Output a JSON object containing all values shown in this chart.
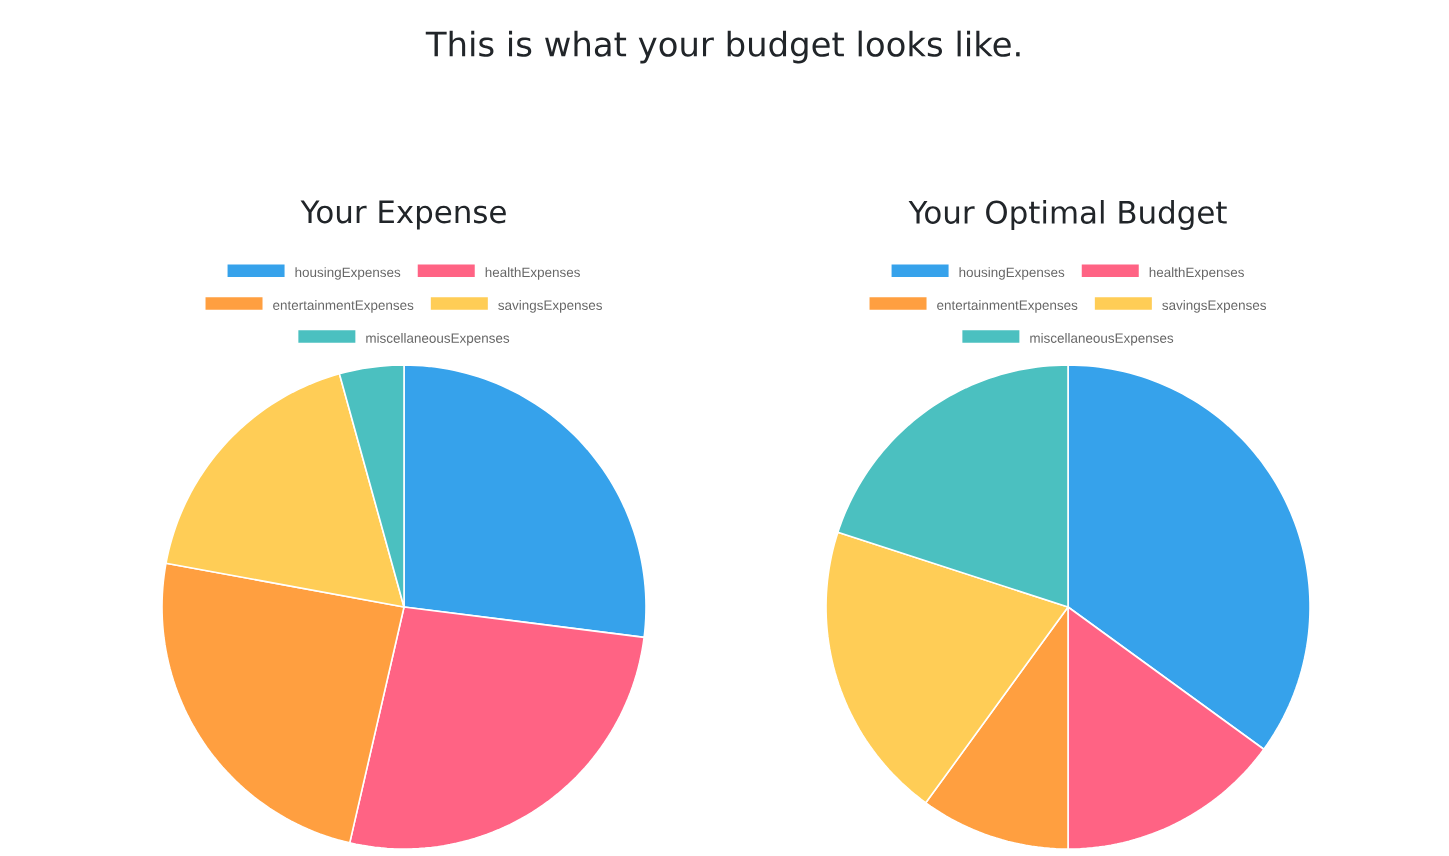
{
  "chart_data": [
    {
      "type": "pie",
      "title": "Your Expense",
      "annotations": [
        "This is what your budget looks like."
      ],
      "legend": "top",
      "categories": [
        "housingExpenses",
        "healthExpenses",
        "entertainmentExpenses",
        "savingsExpenses",
        "miscellaneousExpenses"
      ],
      "values": [
        27.0,
        26.6,
        24.3,
        17.8,
        4.3
      ],
      "colors": [
        "#36a2eb",
        "#ff6384",
        "#ff9f40",
        "#ffcd56",
        "#4bc0c0"
      ]
    },
    {
      "type": "pie",
      "title": "Your Optimal Budget",
      "legend": "top",
      "categories": [
        "housingExpenses",
        "healthExpenses",
        "entertainmentExpenses",
        "savingsExpenses",
        "miscellaneousExpenses"
      ],
      "values": [
        35,
        15,
        10,
        20,
        20
      ],
      "colors": [
        "#36a2eb",
        "#ff6384",
        "#ff9f40",
        "#ffcd56",
        "#4bc0c0"
      ]
    }
  ]
}
